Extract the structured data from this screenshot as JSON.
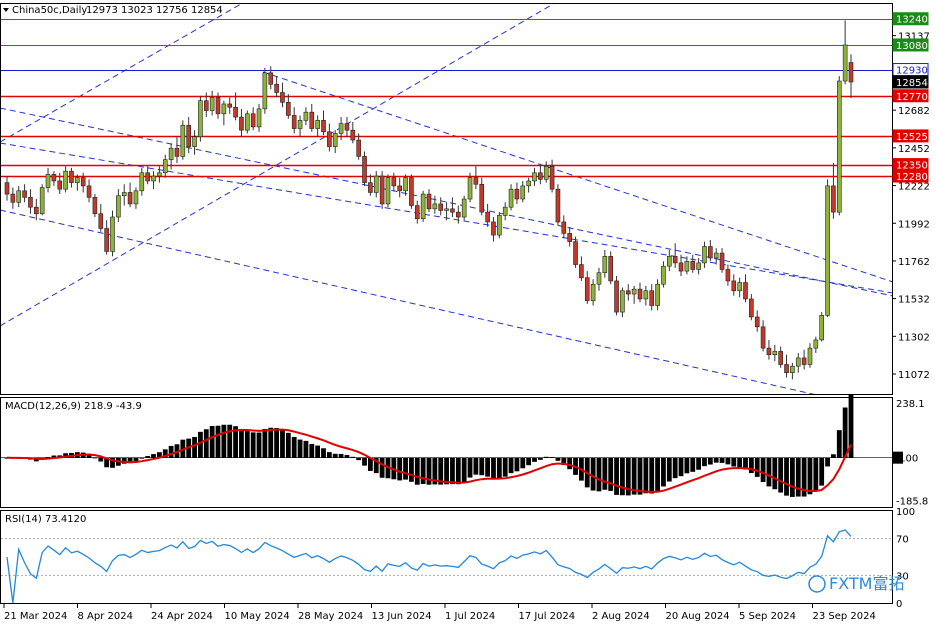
{
  "header": {
    "symbol_label": "China50c,Daily",
    "ohlc_text": "12973 13023 12756 12854"
  },
  "watermark": "FXTM富拓",
  "colors": {
    "up": "#8db33a",
    "down": "#c0392b",
    "hline_red": "#e00000",
    "hline_green": "#1a8a1a",
    "hline_blue": "#1a1ad0",
    "trend": "#2233cc",
    "macd_hist": "#000000",
    "macd_signal": "#e00000",
    "rsi": "#2288dd"
  },
  "chart_data": [
    {
      "type": "candlestick",
      "name": "price",
      "ylim": [
        10950,
        13330
      ],
      "y_ticks": [
        11072,
        11302,
        11532,
        11762,
        11992,
        12222,
        12452,
        12682,
        13137
      ],
      "x_ticks": [
        "21 Mar 2024",
        "8 Apr 2024",
        "24 Apr 2024",
        "10 May 2024",
        "28 May 2024",
        "13 Jun 2024",
        "1 Jul 2024",
        "17 Jul 2024",
        "2 Aug 2024",
        "20 Aug 2024",
        "5 Sep 2024",
        "23 Sep 2024"
      ],
      "horizontal_levels": [
        {
          "value": 13240,
          "label": "13240",
          "color": "green"
        },
        {
          "value": 13080,
          "label": "13080",
          "color": "green"
        },
        {
          "value": 12930,
          "label": "12930",
          "color": "blue"
        },
        {
          "value": 12854,
          "label": "12854",
          "color": "current"
        },
        {
          "value": 12770,
          "label": "12770",
          "color": "red"
        },
        {
          "value": 12525,
          "label": "12525",
          "color": "red"
        },
        {
          "value": 12350,
          "label": "12350",
          "color": "red"
        },
        {
          "value": 12280,
          "label": "12280",
          "color": "red"
        }
      ],
      "candles": [
        [
          12240,
          12280,
          12130,
          12170
        ],
        [
          12170,
          12210,
          12080,
          12120
        ],
        [
          12120,
          12220,
          12090,
          12190
        ],
        [
          12190,
          12230,
          12120,
          12150
        ],
        [
          12150,
          12200,
          12050,
          12090
        ],
        [
          12090,
          12140,
          12010,
          12050
        ],
        [
          12050,
          12230,
          12040,
          12210
        ],
        [
          12210,
          12330,
          12180,
          12290
        ],
        [
          12290,
          12310,
          12220,
          12250
        ],
        [
          12250,
          12300,
          12170,
          12200
        ],
        [
          12200,
          12340,
          12180,
          12310
        ],
        [
          12310,
          12330,
          12210,
          12240
        ],
        [
          12240,
          12290,
          12190,
          12270
        ],
        [
          12270,
          12300,
          12180,
          12220
        ],
        [
          12220,
          12260,
          12120,
          12150
        ],
        [
          12150,
          12170,
          12030,
          12050
        ],
        [
          12050,
          12110,
          11940,
          11960
        ],
        [
          11960,
          12010,
          11800,
          11820
        ],
        [
          11820,
          12070,
          11790,
          12030
        ],
        [
          12030,
          12200,
          12000,
          12160
        ],
        [
          12160,
          12230,
          12100,
          12180
        ],
        [
          12180,
          12240,
          12090,
          12110
        ],
        [
          12110,
          12210,
          12080,
          12190
        ],
        [
          12190,
          12330,
          12160,
          12300
        ],
        [
          12300,
          12340,
          12230,
          12250
        ],
        [
          12250,
          12310,
          12200,
          12280
        ],
        [
          12280,
          12340,
          12240,
          12300
        ],
        [
          12300,
          12410,
          12270,
          12380
        ],
        [
          12380,
          12480,
          12320,
          12450
        ],
        [
          12450,
          12520,
          12360,
          12400
        ],
        [
          12400,
          12620,
          12380,
          12590
        ],
        [
          12590,
          12640,
          12420,
          12460
        ],
        [
          12460,
          12560,
          12410,
          12520
        ],
        [
          12520,
          12770,
          12490,
          12740
        ],
        [
          12740,
          12790,
          12640,
          12680
        ],
        [
          12680,
          12800,
          12650,
          12760
        ],
        [
          12760,
          12790,
          12630,
          12660
        ],
        [
          12660,
          12740,
          12590,
          12720
        ],
        [
          12720,
          12760,
          12660,
          12700
        ],
        [
          12700,
          12790,
          12620,
          12640
        ],
        [
          12640,
          12690,
          12520,
          12560
        ],
        [
          12560,
          12680,
          12540,
          12660
        ],
        [
          12660,
          12700,
          12560,
          12580
        ],
        [
          12580,
          12720,
          12550,
          12690
        ],
        [
          12690,
          12940,
          12660,
          12910
        ],
        [
          12910,
          12950,
          12810,
          12840
        ],
        [
          12840,
          12890,
          12760,
          12790
        ],
        [
          12790,
          12850,
          12700,
          12730
        ],
        [
          12730,
          12780,
          12630,
          12650
        ],
        [
          12650,
          12700,
          12540,
          12570
        ],
        [
          12570,
          12650,
          12520,
          12620
        ],
        [
          12620,
          12700,
          12590,
          12670
        ],
        [
          12670,
          12720,
          12550,
          12570
        ],
        [
          12570,
          12650,
          12520,
          12620
        ],
        [
          12620,
          12680,
          12530,
          12550
        ],
        [
          12550,
          12600,
          12430,
          12460
        ],
        [
          12460,
          12560,
          12420,
          12540
        ],
        [
          12540,
          12640,
          12500,
          12600
        ],
        [
          12600,
          12640,
          12520,
          12560
        ],
        [
          12560,
          12610,
          12480,
          12500
        ],
        [
          12500,
          12540,
          12380,
          12400
        ],
        [
          12400,
          12430,
          12220,
          12240
        ],
        [
          12240,
          12290,
          12160,
          12180
        ],
        [
          12180,
          12310,
          12150,
          12280
        ],
        [
          12280,
          12310,
          12080,
          12110
        ],
        [
          12110,
          12290,
          12090,
          12270
        ],
        [
          12270,
          12300,
          12190,
          12220
        ],
        [
          12220,
          12270,
          12150,
          12190
        ],
        [
          12190,
          12290,
          12160,
          12270
        ],
        [
          12270,
          12290,
          12080,
          12100
        ],
        [
          12100,
          12130,
          11990,
          12020
        ],
        [
          12020,
          12190,
          12000,
          12170
        ],
        [
          12170,
          12200,
          12060,
          12080
        ],
        [
          12080,
          12160,
          12050,
          12110
        ],
        [
          12110,
          12150,
          12040,
          12070
        ],
        [
          12070,
          12120,
          12010,
          12080
        ],
        [
          12080,
          12150,
          12030,
          12060
        ],
        [
          12060,
          12100,
          11990,
          12030
        ],
        [
          12030,
          12160,
          12010,
          12140
        ],
        [
          12140,
          12300,
          12120,
          12270
        ],
        [
          12270,
          12340,
          12200,
          12230
        ],
        [
          12230,
          12270,
          12040,
          12060
        ],
        [
          12060,
          12110,
          11970,
          12000
        ],
        [
          12000,
          12030,
          11880,
          11920
        ],
        [
          11920,
          12060,
          11900,
          12040
        ],
        [
          12040,
          12120,
          12010,
          12090
        ],
        [
          12090,
          12230,
          12070,
          12200
        ],
        [
          12200,
          12240,
          12110,
          12140
        ],
        [
          12140,
          12250,
          12120,
          12220
        ],
        [
          12220,
          12270,
          12180,
          12250
        ],
        [
          12250,
          12330,
          12220,
          12300
        ],
        [
          12300,
          12350,
          12230,
          12260
        ],
        [
          12260,
          12370,
          12240,
          12340
        ],
        [
          12340,
          12380,
          12180,
          12200
        ],
        [
          12200,
          12230,
          11980,
          12000
        ],
        [
          12000,
          12040,
          11900,
          11930
        ],
        [
          11930,
          11970,
          11850,
          11880
        ],
        [
          11880,
          11910,
          11720,
          11740
        ],
        [
          11740,
          11790,
          11640,
          11660
        ],
        [
          11660,
          11700,
          11500,
          11520
        ],
        [
          11520,
          11650,
          11490,
          11620
        ],
        [
          11620,
          11720,
          11580,
          11690
        ],
        [
          11690,
          11830,
          11660,
          11790
        ],
        [
          11790,
          11820,
          11620,
          11640
        ],
        [
          11640,
          11670,
          11430,
          11450
        ],
        [
          11450,
          11600,
          11420,
          11580
        ],
        [
          11580,
          11620,
          11520,
          11560
        ],
        [
          11560,
          11610,
          11500,
          11590
        ],
        [
          11590,
          11630,
          11510,
          11530
        ],
        [
          11530,
          11610,
          11490,
          11580
        ],
        [
          11580,
          11620,
          11460,
          11490
        ],
        [
          11490,
          11650,
          11460,
          11620
        ],
        [
          11620,
          11760,
          11600,
          11730
        ],
        [
          11730,
          11830,
          11700,
          11790
        ],
        [
          11790,
          11870,
          11720,
          11750
        ],
        [
          11750,
          11800,
          11670,
          11700
        ],
        [
          11700,
          11790,
          11680,
          11760
        ],
        [
          11760,
          11800,
          11690,
          11710
        ],
        [
          11710,
          11780,
          11680,
          11750
        ],
        [
          11750,
          11880,
          11720,
          11850
        ],
        [
          11850,
          11890,
          11760,
          11780
        ],
        [
          11780,
          11840,
          11740,
          11810
        ],
        [
          11810,
          11840,
          11690,
          11710
        ],
        [
          11710,
          11740,
          11610,
          11640
        ],
        [
          11640,
          11680,
          11550,
          11580
        ],
        [
          11580,
          11660,
          11540,
          11630
        ],
        [
          11630,
          11680,
          11510,
          11530
        ],
        [
          11530,
          11560,
          11400,
          11420
        ],
        [
          11420,
          11460,
          11330,
          11360
        ],
        [
          11360,
          11400,
          11210,
          11230
        ],
        [
          11230,
          11280,
          11160,
          11190
        ],
        [
          11190,
          11250,
          11150,
          11210
        ],
        [
          11210,
          11240,
          11110,
          11130
        ],
        [
          11130,
          11190,
          11050,
          11080
        ],
        [
          11080,
          11140,
          11040,
          11120
        ],
        [
          11120,
          11200,
          11080,
          11170
        ],
        [
          11170,
          11220,
          11100,
          11130
        ],
        [
          11130,
          11260,
          11110,
          11230
        ],
        [
          11230,
          11300,
          11200,
          11280
        ],
        [
          11280,
          11450,
          11270,
          11430
        ],
        [
          11430,
          12260,
          11420,
          12220
        ],
        [
          12220,
          12360,
          12020,
          12060
        ],
        [
          12060,
          12890,
          12040,
          12860
        ],
        [
          12860,
          13230,
          12840,
          13080
        ],
        [
          12973,
          13023,
          12756,
          12854
        ]
      ]
    },
    {
      "type": "histogram",
      "name": "MACD(12,26,9)",
      "label": "MACD(12,26,9) 218.9 -43.9",
      "ylim": [
        -215,
        260
      ],
      "y_ticks": [
        238.1,
        0.0,
        -185.8
      ],
      "y_tick_labels": [
        "238.1",
        "0.00",
        "-185.8"
      ]
    },
    {
      "type": "line",
      "name": "RSI(14)",
      "label": "RSI(14) 73.4120",
      "ylim": [
        0,
        100
      ],
      "levels": [
        30,
        70
      ],
      "y_tick_labels": [
        "100",
        "70",
        "30",
        "0"
      ]
    }
  ]
}
